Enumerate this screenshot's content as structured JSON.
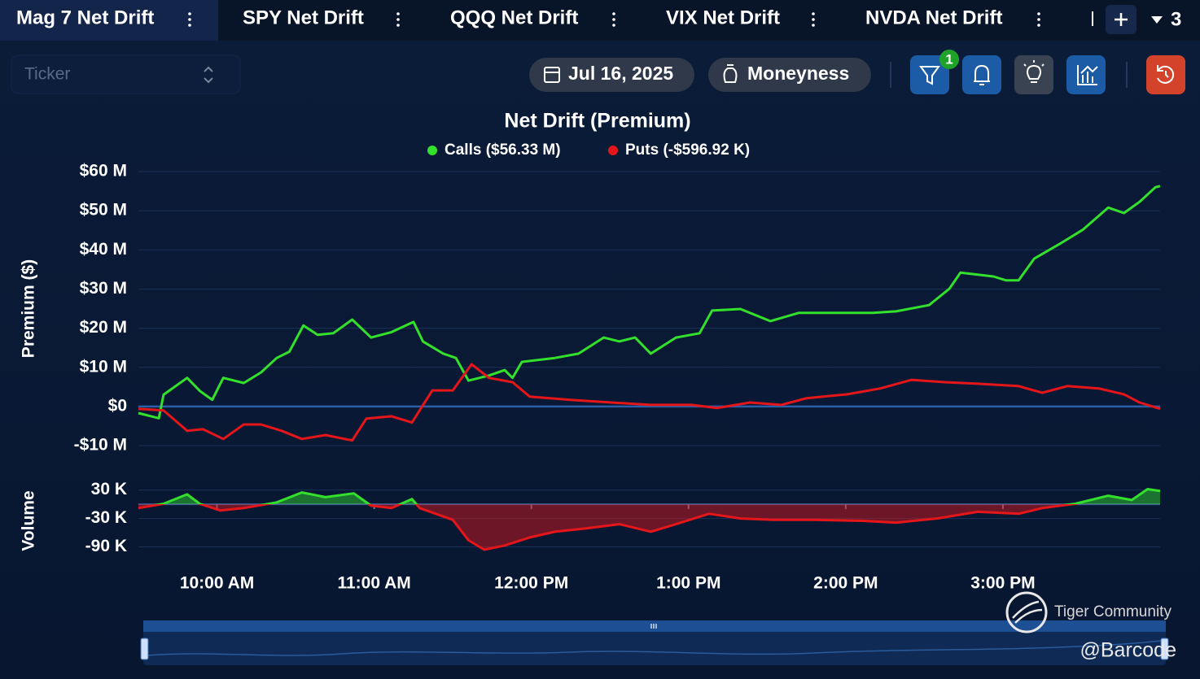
{
  "tabs": [
    "Mag 7 Net Drift",
    "SPY Net Drift",
    "QQQ Net Drift",
    "VIX Net Drift",
    "NVDA Net Drift"
  ],
  "hidden_tab_count": 3,
  "toolbar": {
    "ticker_placeholder": "Ticker",
    "date": "Jul 16, 2025",
    "moneyness": "Moneyness",
    "filter_badge": 1
  },
  "chart_data": [
    {
      "type": "line",
      "title": "Net Drift (Premium)",
      "y_label": "Premium ($)",
      "xlim": [
        9.5,
        16
      ],
      "ylim": [
        -10,
        60
      ],
      "yticks": [
        {
          "value": 60,
          "label": "$60 M"
        },
        {
          "value": 50,
          "label": "$50 M"
        },
        {
          "value": 40,
          "label": "$40 M"
        },
        {
          "value": 30,
          "label": "$30 M"
        },
        {
          "value": 20,
          "label": "$20 M"
        },
        {
          "value": 10,
          "label": "$10 M"
        },
        {
          "value": 0,
          "label": "$0"
        },
        {
          "value": -10,
          "label": "-$10 M"
        }
      ],
      "grid": true,
      "series": [
        {
          "name": "Calls ($56.33 M)",
          "color": "#33e02c",
          "x": [
            9.5,
            9.63,
            9.66,
            9.81,
            9.89,
            9.97,
            10.04,
            10.17,
            10.28,
            10.38,
            10.46,
            10.55,
            10.64,
            10.74,
            10.86,
            10.98,
            11.11,
            11.25,
            11.31,
            11.44,
            11.52,
            11.6,
            11.73,
            11.83,
            11.88,
            11.94,
            12.15,
            12.3,
            12.46,
            12.56,
            12.66,
            12.76,
            12.92,
            13.07,
            13.15,
            13.33,
            13.52,
            13.7,
            13.96,
            14.17,
            14.32,
            14.53,
            14.66,
            14.73,
            14.94,
            15.02,
            15.1,
            15.2,
            15.36,
            15.51,
            15.67,
            15.77,
            15.87,
            15.97,
            16.0
          ],
          "values": [
            -1.7,
            -3,
            3,
            7.3,
            4,
            1.7,
            7.3,
            6,
            8.7,
            12.4,
            14,
            20.7,
            18.3,
            18.7,
            22.2,
            17.6,
            19,
            21.6,
            16.6,
            13.5,
            12.4,
            6.6,
            7.9,
            9.3,
            7.3,
            11.4,
            12.4,
            13.5,
            17.6,
            16.6,
            17.6,
            13.5,
            17.6,
            18.7,
            24.5,
            24.9,
            21.8,
            23.9,
            23.9,
            23.9,
            24.3,
            25.9,
            30.1,
            34.2,
            33.2,
            32.2,
            32.2,
            37.8,
            41.5,
            45.2,
            50.8,
            49.4,
            52.3,
            56,
            56.3
          ]
        },
        {
          "name": "Puts (-$596.92 K)",
          "color": "#e5161a",
          "x": [
            9.5,
            9.66,
            9.81,
            9.91,
            10.04,
            10.17,
            10.28,
            10.41,
            10.54,
            10.69,
            10.86,
            10.95,
            11.11,
            11.24,
            11.37,
            11.5,
            11.62,
            11.73,
            11.88,
            11.99,
            12.25,
            12.51,
            12.76,
            13.02,
            13.18,
            13.39,
            13.59,
            13.75,
            14.01,
            14.22,
            14.42,
            14.63,
            14.84,
            15.1,
            15.25,
            15.41,
            15.61,
            15.77,
            15.87,
            16.0
          ],
          "values": [
            -0.6,
            -1,
            -6.2,
            -5.8,
            -8.3,
            -4.6,
            -4.6,
            -6.2,
            -8.3,
            -7.3,
            -8.7,
            -3.1,
            -2.5,
            -4.1,
            4.1,
            4.1,
            10.8,
            7.3,
            6.2,
            2.5,
            1.7,
            1,
            0.4,
            0.4,
            -0.4,
            1,
            0.4,
            2.1,
            3.1,
            4.6,
            6.8,
            6.2,
            5.8,
            5.2,
            3.5,
            5.2,
            4.6,
            3.1,
            1,
            -0.6
          ]
        }
      ]
    },
    {
      "type": "area",
      "y_label": "Volume",
      "xlim": [
        9.5,
        16
      ],
      "ylim": [
        -120,
        50
      ],
      "yticks": [
        {
          "value": 30,
          "label": "30 K"
        },
        {
          "value": -30,
          "label": "-30 K"
        },
        {
          "value": -90,
          "label": "-90 K"
        }
      ],
      "xticks": [
        {
          "value": 10,
          "label": "10:00 AM"
        },
        {
          "value": 11,
          "label": "11:00 AM"
        },
        {
          "value": 12,
          "label": "12:00 PM"
        },
        {
          "value": 13,
          "label": "1:00 PM"
        },
        {
          "value": 14,
          "label": "2:00 PM"
        },
        {
          "value": 15,
          "label": "3:00 PM"
        }
      ],
      "grid": true,
      "positive_color": "#33e02c",
      "negative_color": "#e5161a",
      "x": [
        9.5,
        9.66,
        9.81,
        9.89,
        10.02,
        10.17,
        10.38,
        10.54,
        10.69,
        10.87,
        10.98,
        11.11,
        11.24,
        11.29,
        11.5,
        11.6,
        11.7,
        11.83,
        11.99,
        12.15,
        12.35,
        12.56,
        12.76,
        12.92,
        13.13,
        13.33,
        13.54,
        13.8,
        14.11,
        14.32,
        14.58,
        14.84,
        15.1,
        15.25,
        15.46,
        15.67,
        15.82,
        15.92,
        16.0
      ],
      "values": [
        -8,
        1,
        21,
        1,
        -13,
        -8,
        4,
        25,
        15,
        23,
        -3,
        -8,
        11,
        -8,
        -33,
        -76,
        -96,
        -87,
        -70,
        -58,
        -51,
        -42,
        -58,
        -42,
        -20,
        -30,
        -33,
        -33,
        -35,
        -39,
        -30,
        -16,
        -20,
        -8,
        1,
        18,
        9,
        32,
        28
      ]
    }
  ],
  "watermark": {
    "brand": "Tiger Community",
    "handle": "@Barcode"
  }
}
